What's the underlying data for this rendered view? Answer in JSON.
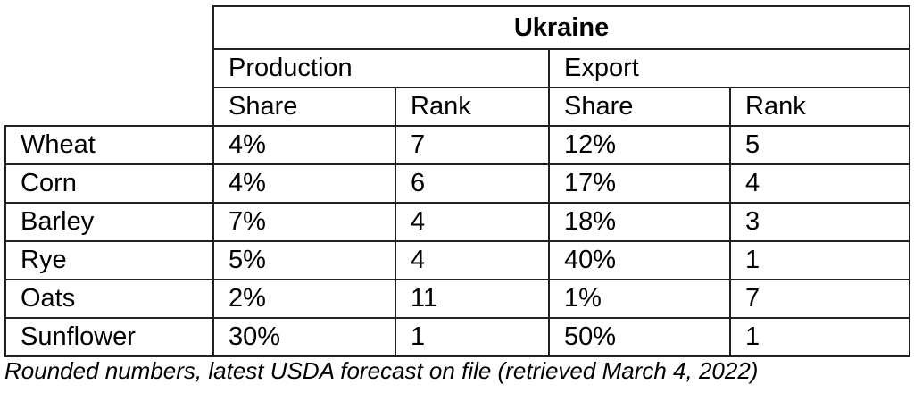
{
  "country": "Ukraine",
  "groups": [
    "Production",
    "Export"
  ],
  "subheaders": [
    "Share",
    "Rank",
    "Share",
    "Rank"
  ],
  "rows": [
    {
      "crop": "Wheat",
      "prod_share": "4%",
      "prod_rank": "7",
      "exp_share": "12%",
      "exp_rank": "5"
    },
    {
      "crop": "Corn",
      "prod_share": "4%",
      "prod_rank": "6",
      "exp_share": "17%",
      "exp_rank": "4"
    },
    {
      "crop": "Barley",
      "prod_share": "7%",
      "prod_rank": "4",
      "exp_share": "18%",
      "exp_rank": "3"
    },
    {
      "crop": "Rye",
      "prod_share": "5%",
      "prod_rank": "4",
      "exp_share": "40%",
      "exp_rank": "1"
    },
    {
      "crop": "Oats",
      "prod_share": "2%",
      "prod_rank": "11",
      "exp_share": "1%",
      "exp_rank": "7"
    },
    {
      "crop": "Sunflower",
      "prod_share": "30%",
      "prod_rank": "1",
      "exp_share": "50%",
      "exp_rank": "1"
    }
  ],
  "caption": "Rounded numbers, latest USDA forecast on file (retrieved March 4, 2022)"
}
